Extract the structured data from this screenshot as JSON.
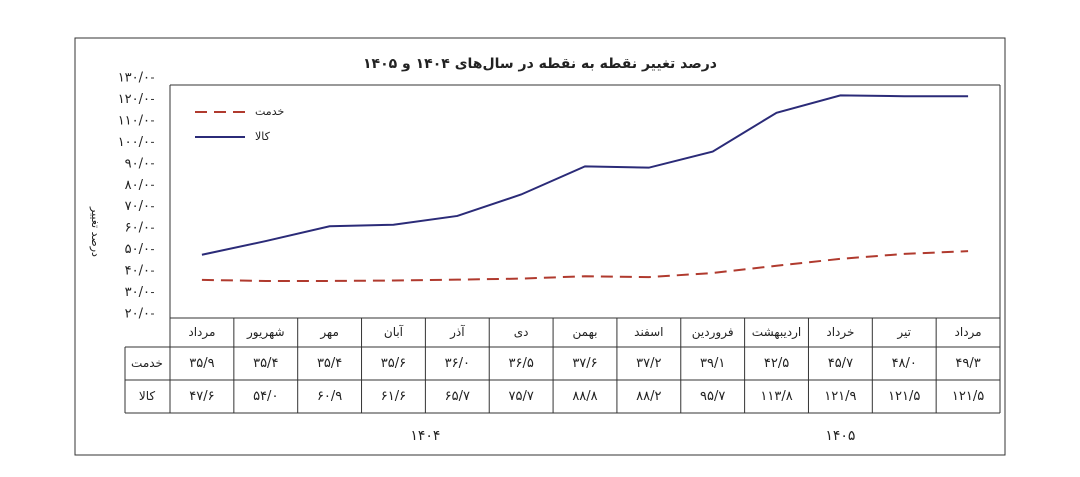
{
  "chart_data": {
    "type": "line",
    "title": "درصد تغییر نقطه به نقطه در سال‌های ۱۴۰۴ و ۱۴۰۵",
    "y_label": "درصد تغییر",
    "categories": [
      "مرداد",
      "شهریور",
      "مهر",
      "آبان",
      "آذر",
      "دی",
      "بهمن",
      "اسفند",
      "فروردین",
      "اردیبهشت",
      "خرداد",
      "تیر",
      "مرداد"
    ],
    "x_groups": [
      "۱۴۰۴",
      "۱۴۰۵"
    ],
    "series": [
      {
        "name": "خدمت",
        "color": "#b03a2e",
        "dash": true,
        "values": [
          35.9,
          35.4,
          35.4,
          35.6,
          36.0,
          36.5,
          37.6,
          37.2,
          39.1,
          42.5,
          45.7,
          48.0,
          49.3
        ],
        "value_labels": [
          "۳۵/۹",
          "۳۵/۴",
          "۳۵/۴",
          "۳۵/۶",
          "۳۶/۰",
          "۳۶/۵",
          "۳۷/۶",
          "۳۷/۲",
          "۳۹/۱",
          "۴۲/۵",
          "۴۵/۷",
          "۴۸/۰",
          "۴۹/۳"
        ]
      },
      {
        "name": "کالا",
        "color": "#2b2b78",
        "dash": false,
        "values": [
          47.6,
          54.0,
          60.9,
          61.6,
          65.7,
          75.7,
          88.8,
          88.2,
          95.7,
          113.8,
          121.9,
          121.5,
          121.5
        ],
        "value_labels": [
          "۴۷/۶",
          "۵۴/۰",
          "۶۰/۹",
          "۶۱/۶",
          "۶۵/۷",
          "۷۵/۷",
          "۸۸/۸",
          "۸۸/۲",
          "۹۵/۷",
          "۱۱۳/۸",
          "۱۲۱/۹",
          "۱۲۱/۵",
          "۱۲۱/۵"
        ]
      }
    ],
    "ylim": [
      20,
      130
    ],
    "yticks": [
      {
        "value": 20,
        "label": "۲۰/۰"
      },
      {
        "value": 30,
        "label": "۳۰/۰"
      },
      {
        "value": 40,
        "label": "۴۰/۰"
      },
      {
        "value": 50,
        "label": "۵۰/۰"
      },
      {
        "value": 60,
        "label": "۶۰/۰"
      },
      {
        "value": 70,
        "label": "۷۰/۰"
      },
      {
        "value": 80,
        "label": "۸۰/۰"
      },
      {
        "value": 90,
        "label": "۹۰/۰"
      },
      {
        "value": 100,
        "label": "۱۰۰/۰"
      },
      {
        "value": 110,
        "label": "۱۱۰/۰"
      },
      {
        "value": 120,
        "label": "۱۲۰/۰"
      },
      {
        "value": 130,
        "label": "۱۳۰/۰"
      }
    ],
    "legend": "top-left"
  }
}
